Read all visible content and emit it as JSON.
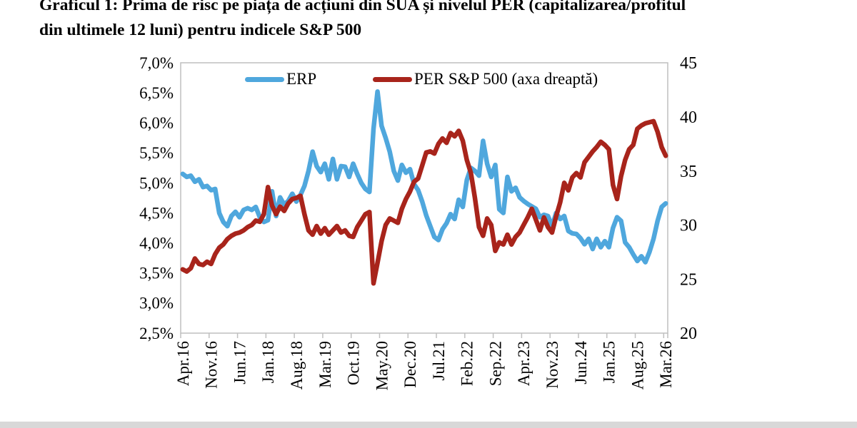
{
  "title": {
    "line1": "Graficul 1: Prima de risc pe piața de acțiuni din SUA și nivelul PER (capitalizarea/profitul",
    "line2": "din ultimele 12 luni) pentru indicele S&P 500"
  },
  "legend": {
    "items": [
      {
        "label": "ERP",
        "color": "#4FA7DD"
      },
      {
        "label": "PER S&P 500 (axa dreaptă)",
        "color": "#A8241B"
      }
    ]
  },
  "colors": {
    "erp_line": "#4FA7DD",
    "per_line": "#A8241B",
    "plot_border": "#bfbfbf",
    "tick": "#bfbfbf",
    "text": "#000000"
  },
  "chart_data": {
    "type": "line",
    "title": "Graficul 1: Prima de risc pe piața de acțiuni din SUA și nivelul PER (capitalizarea/profitul din ultimele 12 luni) pentru indicele S&P 500",
    "x_axis_note": "monthly, Apr 2016 - Mar 2026, 120 points",
    "grid": false,
    "legend_position": "top-inside",
    "x_ticks": [
      {
        "label": "Apr.16",
        "month": 0
      },
      {
        "label": "Nov.16",
        "month": 7
      },
      {
        "label": "Jun.17",
        "month": 14
      },
      {
        "label": "Jan.18",
        "month": 21
      },
      {
        "label": "Aug.18",
        "month": 28
      },
      {
        "label": "Mar.19",
        "month": 35
      },
      {
        "label": "Oct.19",
        "month": 42
      },
      {
        "label": "May.20",
        "month": 49
      },
      {
        "label": "Dec.20",
        "month": 56
      },
      {
        "label": "Jul.21",
        "month": 63
      },
      {
        "label": "Feb.22",
        "month": 70
      },
      {
        "label": "Sep.22",
        "month": 77
      },
      {
        "label": "Apr.23",
        "month": 84
      },
      {
        "label": "Nov.23",
        "month": 91
      },
      {
        "label": "Jun.24",
        "month": 98
      },
      {
        "label": "Jan.25",
        "month": 105
      },
      {
        "label": "Aug.25",
        "month": 112
      },
      {
        "label": "Mar.26",
        "month": 119
      }
    ],
    "left_axis": {
      "min": 2.5,
      "max": 7.0,
      "ticks": [
        {
          "label": "7,0%",
          "value": 7.0
        },
        {
          "label": "6,5%",
          "value": 6.5
        },
        {
          "label": "6,0%",
          "value": 6.0
        },
        {
          "label": "5,5%",
          "value": 5.5
        },
        {
          "label": "5,0%",
          "value": 5.0
        },
        {
          "label": "4,5%",
          "value": 4.5
        },
        {
          "label": "4,0%",
          "value": 4.0
        },
        {
          "label": "3,5%",
          "value": 3.5
        },
        {
          "label": "3,0%",
          "value": 3.0
        },
        {
          "label": "2,5%",
          "value": 2.5
        }
      ]
    },
    "right_axis": {
      "min": 20,
      "max": 45,
      "ticks": [
        {
          "label": "45",
          "value": 45
        },
        {
          "label": "40",
          "value": 40
        },
        {
          "label": "35",
          "value": 35
        },
        {
          "label": "30",
          "value": 30
        },
        {
          "label": "25",
          "value": 25
        },
        {
          "label": "20",
          "value": 20
        }
      ]
    },
    "series": [
      {
        "name": "ERP",
        "axis": "left",
        "color": "#4FA7DD",
        "values": [
          5.15,
          5.1,
          5.12,
          5.02,
          5.06,
          4.93,
          4.95,
          4.88,
          4.9,
          4.5,
          4.35,
          4.28,
          4.45,
          4.52,
          4.43,
          4.55,
          4.58,
          4.55,
          4.6,
          4.43,
          4.35,
          4.38,
          4.86,
          4.45,
          4.76,
          4.64,
          4.7,
          4.82,
          4.69,
          4.8,
          4.95,
          5.2,
          5.52,
          5.28,
          5.18,
          5.32,
          5.06,
          5.4,
          5.06,
          5.28,
          5.27,
          5.1,
          5.32,
          5.15,
          5.0,
          4.9,
          4.85,
          5.9,
          6.52,
          5.95,
          5.75,
          5.52,
          5.2,
          5.04,
          5.3,
          5.17,
          5.23,
          4.98,
          4.88,
          4.69,
          4.46,
          4.28,
          4.1,
          4.05,
          4.23,
          4.33,
          4.48,
          4.4,
          4.72,
          4.6,
          5.05,
          5.25,
          5.2,
          5.12,
          5.7,
          5.32,
          5.1,
          5.3,
          4.56,
          4.5,
          5.1,
          4.86,
          4.92,
          4.76,
          4.7,
          4.65,
          4.61,
          4.57,
          4.43,
          4.47,
          4.45,
          4.28,
          4.5,
          4.4,
          4.45,
          4.2,
          4.16,
          4.15,
          4.08,
          3.98,
          4.07,
          3.9,
          4.07,
          3.93,
          4.03,
          3.93,
          4.25,
          4.43,
          4.37,
          4.01,
          3.93,
          3.81,
          3.7,
          3.78,
          3.68,
          3.85,
          4.07,
          4.37,
          4.6,
          4.66
        ]
      },
      {
        "name": "PER S&P 500 (axa dreaptă)",
        "axis": "right",
        "color": "#A8241B",
        "values": [
          25.9,
          25.7,
          26.0,
          26.9,
          26.4,
          26.3,
          26.6,
          26.4,
          27.3,
          27.9,
          28.2,
          28.7,
          29.0,
          29.2,
          29.3,
          29.5,
          29.8,
          30.0,
          30.4,
          30.3,
          31.0,
          33.5,
          31.8,
          31.0,
          31.7,
          31.3,
          32.0,
          32.4,
          32.5,
          32.7,
          31.0,
          29.5,
          29.1,
          29.9,
          29.2,
          29.7,
          29.1,
          29.5,
          29.9,
          29.3,
          29.5,
          29.0,
          28.9,
          29.8,
          30.4,
          31.0,
          31.2,
          24.6,
          26.5,
          28.5,
          30.0,
          30.6,
          30.4,
          30.2,
          31.5,
          32.4,
          33.1,
          34.0,
          34.3,
          35.5,
          36.7,
          36.8,
          36.6,
          37.5,
          38.0,
          37.6,
          38.5,
          38.2,
          38.7,
          37.8,
          36.0,
          34.8,
          32.5,
          29.8,
          29.0,
          30.6,
          30.0,
          27.6,
          28.4,
          28.2,
          29.1,
          28.2,
          28.9,
          29.3,
          30.0,
          30.7,
          31.5,
          30.5,
          29.5,
          30.7,
          29.8,
          29.3,
          30.8,
          32.1,
          33.9,
          33.2,
          34.4,
          34.8,
          34.4,
          35.8,
          36.3,
          36.8,
          37.2,
          37.7,
          37.4,
          37.0,
          33.7,
          32.4,
          34.5,
          36.0,
          37.0,
          37.4,
          38.9,
          39.2,
          39.4,
          39.5,
          39.6,
          38.6,
          37.2,
          36.4
        ]
      }
    ]
  }
}
